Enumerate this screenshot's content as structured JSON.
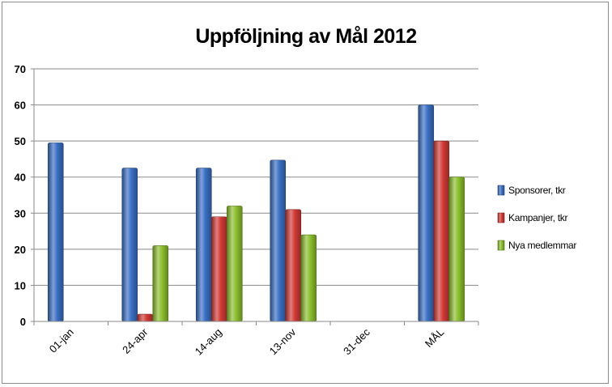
{
  "chart_data": {
    "type": "bar",
    "title": "Uppföljning av Mål 2012",
    "xlabel": "",
    "ylabel": "",
    "categories": [
      "01-jan",
      "24-apr",
      "14-aug",
      "13-nov",
      "31-dec",
      "MÅL"
    ],
    "series": [
      {
        "name": "Sponsorer, tkr",
        "color": "#3a6fc4",
        "values": [
          49.5,
          42.5,
          42.5,
          44.7,
          null,
          60
        ]
      },
      {
        "name": "Kampanjer, tkr",
        "color": "#d23a36",
        "values": [
          null,
          2,
          29,
          31,
          null,
          50
        ]
      },
      {
        "name": "Nya medlemmar",
        "color": "#8cbf2e",
        "values": [
          null,
          21,
          32,
          24,
          null,
          40
        ]
      }
    ],
    "ylim": [
      0,
      70
    ],
    "yticks": [
      0,
      10,
      20,
      30,
      40,
      50,
      60,
      70
    ],
    "grid": true,
    "legend_position": "right"
  }
}
